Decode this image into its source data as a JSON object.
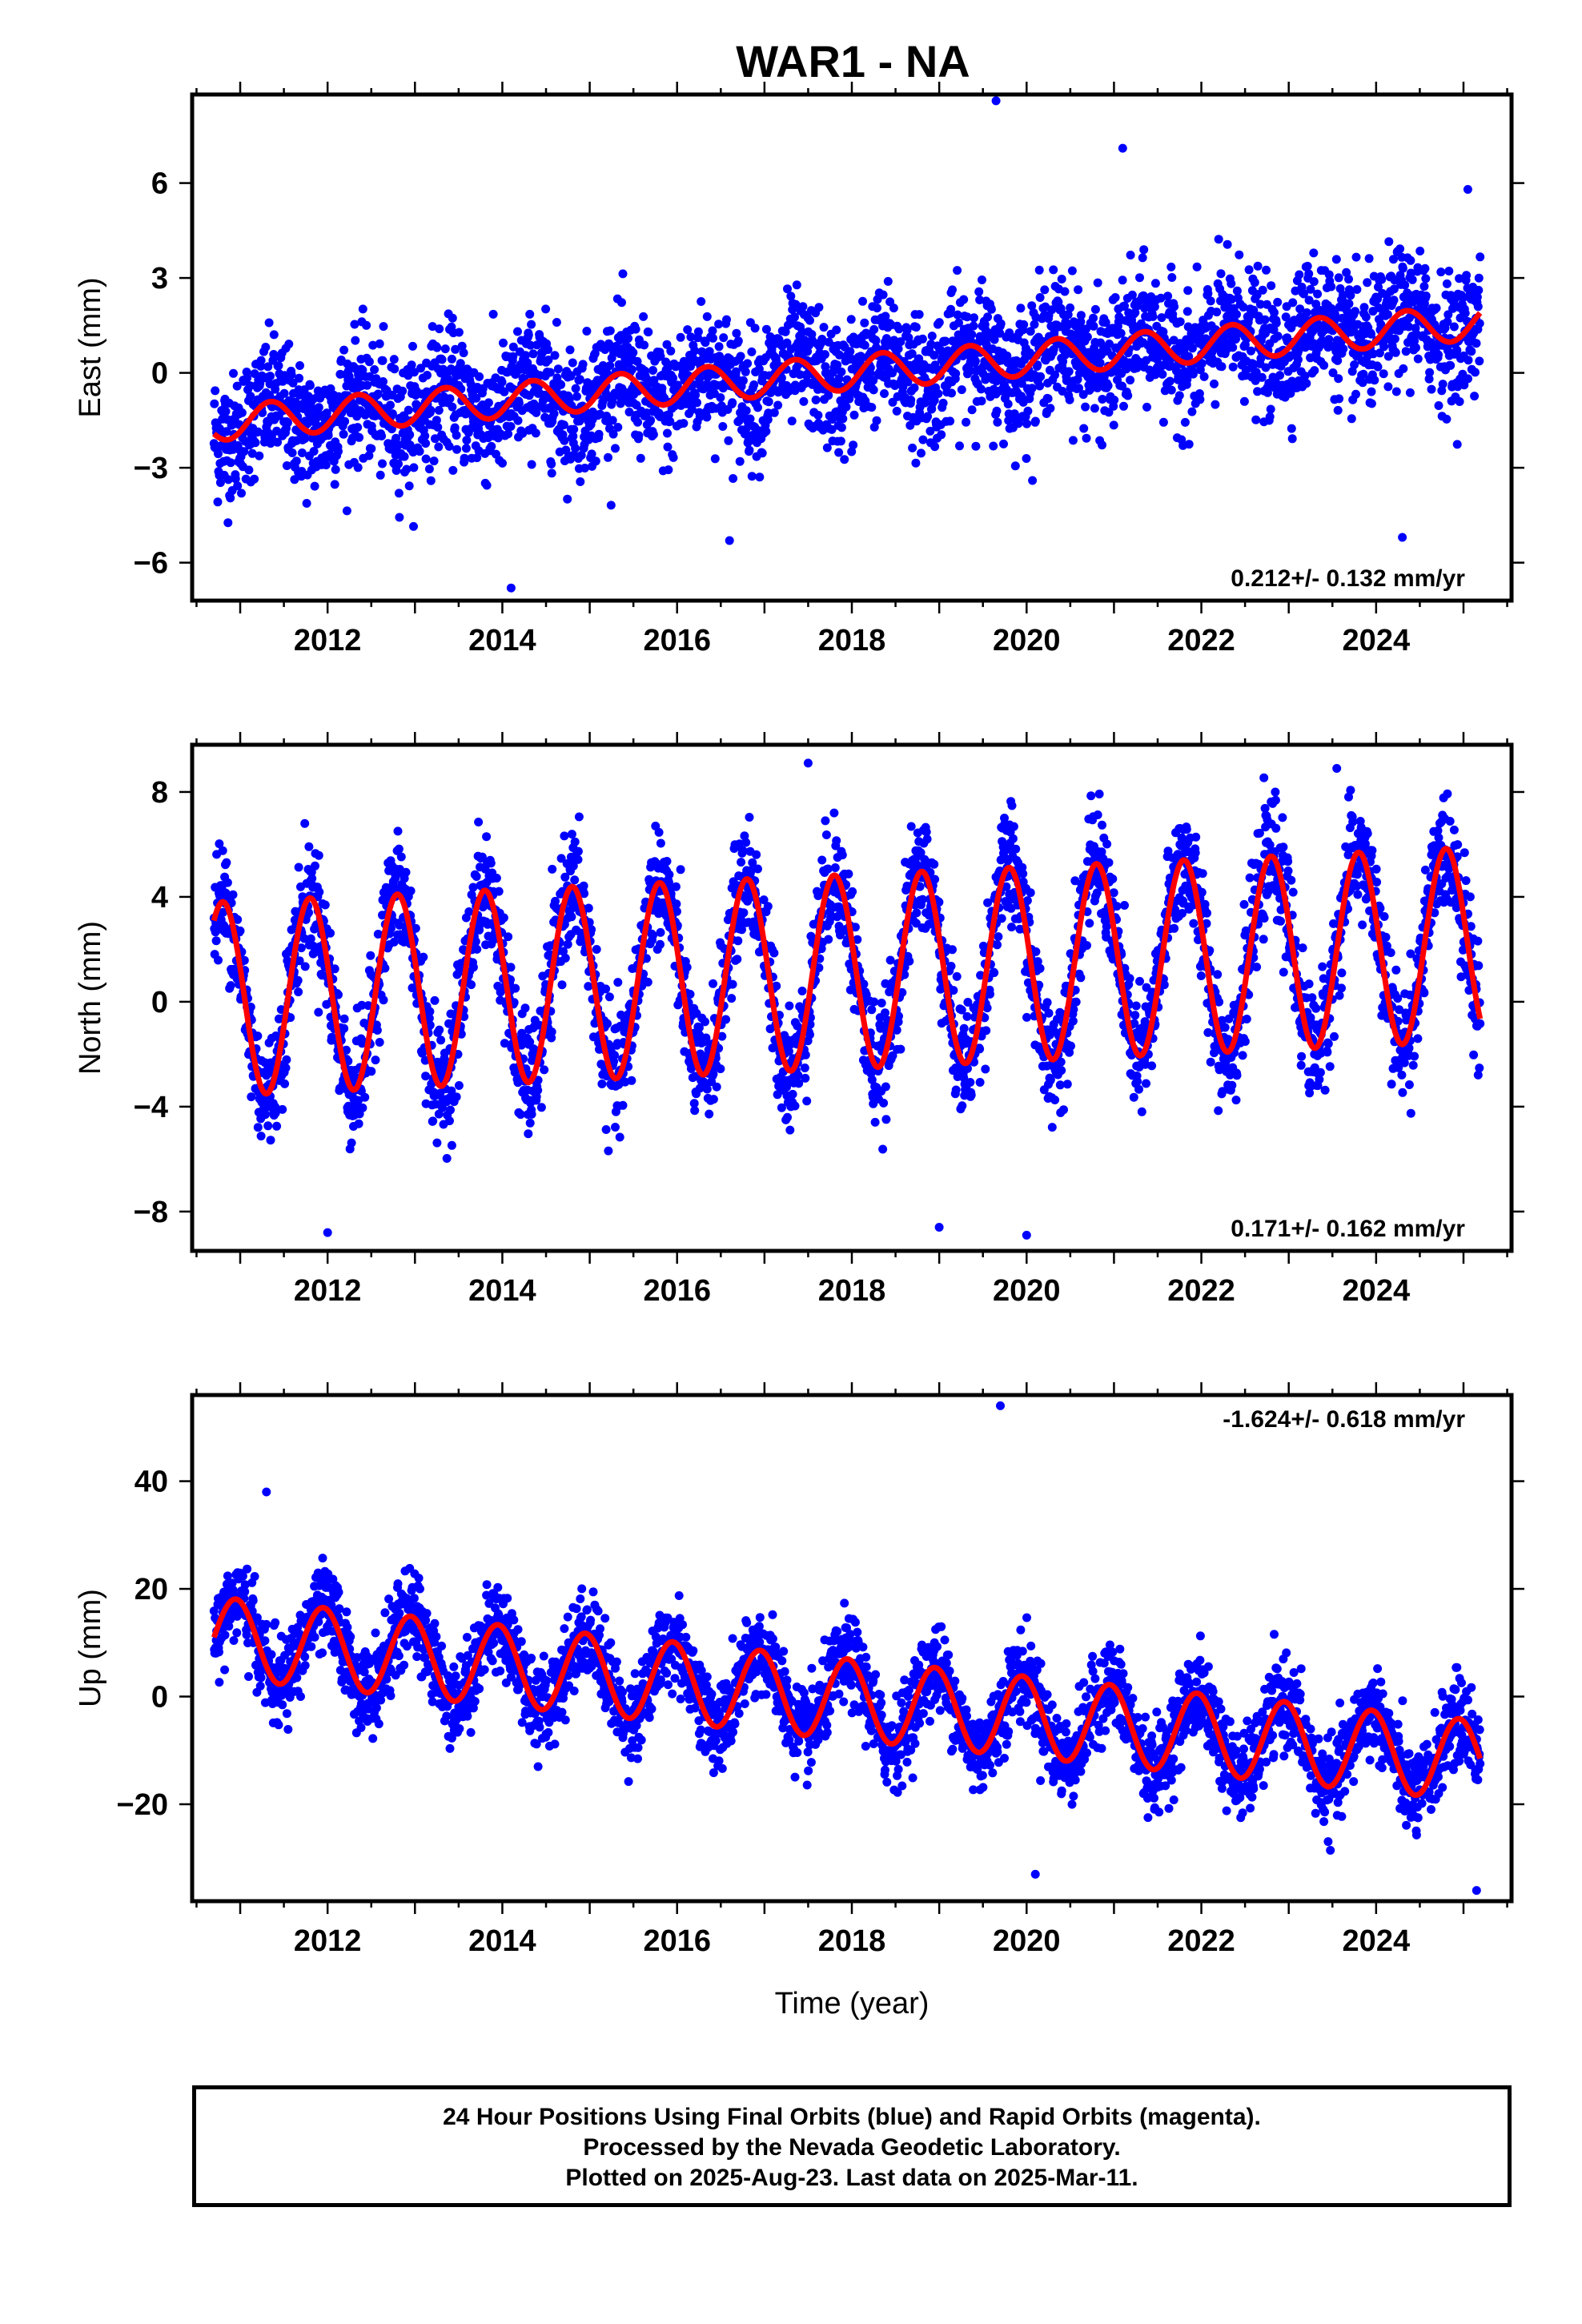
{
  "title": "WAR1 - NA",
  "xlabel": "Time (year)",
  "footer": [
    "24 Hour Positions Using Final Orbits (blue) and Rapid Orbits (magenta).",
    "Processed by the Nevada Geodetic Laboratory.",
    "Plotted on 2025-Aug-23. Last data on 2025-Mar-11."
  ],
  "colors": {
    "data": "#0000ff",
    "model": "#ff0000",
    "axes": "#000000"
  },
  "chart_data": [
    {
      "type": "scatter",
      "name": "east",
      "ylabel": "East (mm)",
      "rate_text": "0.212+/- 0.132 mm/yr",
      "rate_position": "bottom-right",
      "xlim": [
        2010.45,
        2025.55
      ],
      "ylim": [
        -7.2,
        8.8
      ],
      "xticks": [
        2012,
        2014,
        2016,
        2018,
        2020,
        2022,
        2024
      ],
      "yticks": [
        -6,
        -3,
        0,
        3,
        6
      ],
      "grid": false,
      "time_span": [
        2010.7,
        2025.19
      ],
      "points_per_year": 230,
      "model": {
        "trend_mm": [
          -1.6,
          1.6
        ],
        "annual_amp_mm": 0.55,
        "phase_year": 0.1
      },
      "scatter_sd_mm": 1.0,
      "outliers": [
        [
          2019.65,
          8.6
        ],
        [
          2021.1,
          7.1
        ],
        [
          2025.05,
          5.8
        ],
        [
          2014.1,
          -6.8
        ],
        [
          2016.6,
          -5.3
        ],
        [
          2024.3,
          -5.2
        ]
      ]
    },
    {
      "type": "scatter",
      "name": "north",
      "ylabel": "North (mm)",
      "rate_text": "0.171+/- 0.162 mm/yr",
      "rate_position": "bottom-right",
      "xlim": [
        2010.45,
        2025.55
      ],
      "ylim": [
        -9.5,
        9.8
      ],
      "xticks": [
        2012,
        2014,
        2016,
        2018,
        2020,
        2022,
        2024
      ],
      "yticks": [
        -8,
        -4,
        0,
        4,
        8
      ],
      "grid": false,
      "time_span": [
        2010.7,
        2025.19
      ],
      "points_per_year": 230,
      "model": {
        "trend_mm": [
          0.1,
          2.2
        ],
        "annual_amp_mm": 3.7,
        "phase_year": 0.55
      },
      "scatter_sd_mm": 1.1,
      "outliers": [
        [
          2017.5,
          9.1
        ],
        [
          2023.55,
          8.9
        ],
        [
          2019.0,
          -8.6
        ],
        [
          2020.0,
          -8.9
        ],
        [
          2012.0,
          -8.8
        ]
      ]
    },
    {
      "type": "scatter",
      "name": "up",
      "ylabel": "Up (mm)",
      "rate_text": "-1.624+/- 0.618 mm/yr",
      "rate_position": "top-right",
      "xlim": [
        2010.45,
        2025.55
      ],
      "ylim": [
        -38,
        56
      ],
      "xticks": [
        2012,
        2014,
        2016,
        2018,
        2020,
        2022,
        2024
      ],
      "yticks": [
        -20,
        0,
        20,
        40
      ],
      "grid": false,
      "time_span": [
        2010.7,
        2025.19
      ],
      "points_per_year": 230,
      "model": {
        "trend_mm": [
          11,
          -12
        ],
        "annual_amp_mm": 7.5,
        "phase_year": 0.7
      },
      "scatter_sd_mm": 4.0,
      "outliers": [
        [
          2019.7,
          54
        ],
        [
          2011.3,
          38
        ],
        [
          2025.15,
          -36
        ],
        [
          2020.1,
          -33
        ]
      ]
    }
  ]
}
